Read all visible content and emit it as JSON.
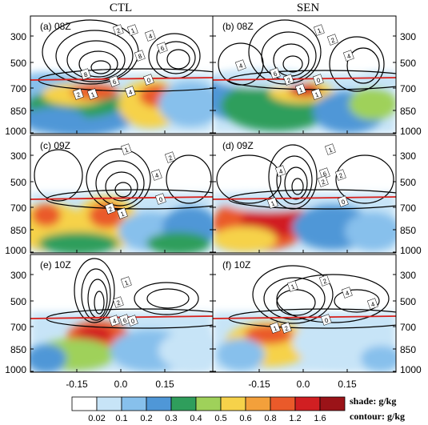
{
  "chart_data": {
    "type": "heatmap",
    "column_titles": [
      "CTL",
      "SEN"
    ],
    "panel_labels": [
      "(a) 08Z",
      "(b) 08Z",
      "(c) 09Z",
      "(d) 09Z",
      "(e) 10Z",
      "(f) 10Z"
    ],
    "yticks": [
      "300",
      "500",
      "700",
      "850",
      "1000"
    ],
    "xticks": [
      "-0.15",
      "0.0",
      "0.15"
    ],
    "colorbar_levels": [
      "0.02",
      "0.1",
      "0.2",
      "0.3",
      "0.4",
      "0.5",
      "0.6",
      "0.8",
      "1.2",
      "1.6"
    ],
    "colorbar_colors": [
      "#ffffff",
      "#c7e4f7",
      "#87c0ec",
      "#4f97d7",
      "#2f9e5c",
      "#9fd15a",
      "#f6d24a",
      "#f3a03b",
      "#ea5a2a",
      "#d11f22",
      "#9b1318"
    ],
    "legend_shade": "shade: g/kg",
    "legend_contour": "contour: g/kg",
    "melting_line_color": "#d9201b",
    "contour_labels": {
      "a": [
        "2",
        "1",
        "4",
        "6",
        "8",
        "8",
        "6",
        "4",
        "2",
        "1",
        "0"
      ],
      "b": [
        "1",
        "2",
        "4",
        "6",
        "4",
        "2",
        "1",
        "0",
        "1"
      ],
      "c": [
        "1",
        "2",
        "4",
        "2",
        "1",
        "0"
      ],
      "d": [
        "1",
        "4",
        "2",
        "6",
        "2",
        "1",
        "0"
      ],
      "e": [
        "1",
        "2",
        "4",
        "6",
        "0"
      ],
      "f": [
        "1",
        "2",
        "4",
        "1",
        "2",
        "0",
        "4"
      ]
    }
  }
}
